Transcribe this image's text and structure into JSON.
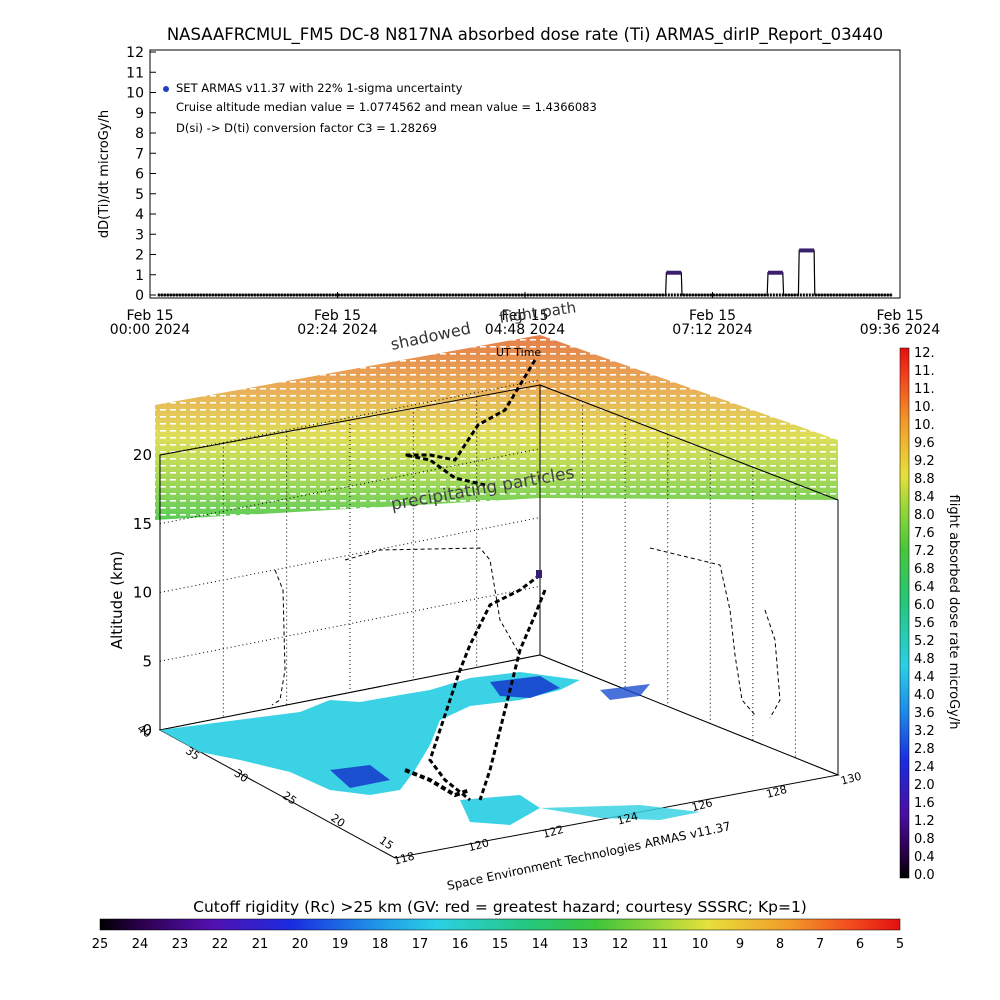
{
  "title": "NASAAFRCMUL_FM5 DC-8   N817NA absorbed dose rate (Ti) ARMAS_dirIP_Report_03440",
  "top_chart": {
    "ylabel": "dD(Ti)/dt microGy/h",
    "legend": [
      "SET ARMAS v11.37 with 22% 1-sigma uncertainty",
      "Cruise altitude median value = 1.0774562 and mean value = 1.4366083",
      "D(si) -> D(ti) conversion factor C3 = 1.28269"
    ],
    "time_ticks": [
      {
        "l1": "Feb 15",
        "l2": "00:00 2024"
      },
      {
        "l1": "Feb 15",
        "l2": "02:24 2024"
      },
      {
        "l1": "Feb 15",
        "l2": "04:48 2024"
      },
      {
        "l1": "Feb 15",
        "l2": "07:12 2024"
      },
      {
        "l1": "Feb 15",
        "l2": "09:36 2024"
      }
    ]
  },
  "bottom_chart": {
    "ylabel": "Altitude (km)",
    "z_ticks": [
      "0",
      "5",
      "10",
      "15",
      "20"
    ],
    "lat_ticks": [
      "40",
      "35",
      "30",
      "25",
      "20",
      "15"
    ],
    "lon_ticks": [
      "118",
      "120",
      "122",
      "124",
      "126",
      "128",
      "130"
    ],
    "annotations": {
      "shadowed": "shadowed",
      "flight_path": "flight path",
      "ut_time": "UT Time",
      "precipitating": "precipitating particles",
      "credit": "Space Environment Technologies ARMAS v11.37"
    }
  },
  "right_colorbar": {
    "label": "flight absorbed dose rate microGy/h",
    "ticks": [
      "12.",
      "11.",
      "11.",
      "10.",
      "10.",
      "9.6",
      "9.2",
      "8.8",
      "8.4",
      "8.0",
      "7.6",
      "7.2",
      "6.8",
      "6.4",
      "6.0",
      "5.6",
      "5.2",
      "4.8",
      "4.4",
      "4.0",
      "3.6",
      "3.2",
      "2.8",
      "2.4",
      "2.0",
      "1.6",
      "1.2",
      "0.8",
      "0.4",
      "0.0"
    ]
  },
  "bottom_colorbar": {
    "title": "Cutoff rigidity (Rc) >25 km (GV: red = greatest hazard; courtesy SSSRC; Kp=1)",
    "ticks": [
      "25",
      "24",
      "23",
      "22",
      "21",
      "20",
      "19",
      "18",
      "17",
      "16",
      "15",
      "14",
      "13",
      "12",
      "11",
      "10",
      "9",
      "8",
      "7",
      "6",
      "5"
    ]
  },
  "chart_data": [
    {
      "type": "line",
      "title": "NASAAFRCMUL_FM5 DC-8   N817NA absorbed dose rate (Ti) ARMAS_dirIP_Report_03440",
      "ylabel": "dD(Ti)/dt microGy/h",
      "xlabel": "",
      "ylim": [
        0,
        12
      ],
      "xlim_hours": [
        0,
        9.6
      ],
      "yticks": [
        0,
        1,
        2,
        3,
        4,
        5,
        6,
        7,
        8,
        9,
        10,
        11,
        12
      ],
      "series": [
        {
          "name": "SET ARMAS v11.37 with 22% 1-sigma uncertainty",
          "color": "#2030c0",
          "x_hours": [
            0.1,
            6.6,
            6.61,
            6.8,
            6.81,
            7.8,
            7.9,
            7.91,
            8.1,
            8.11,
            8.2,
            8.3,
            8.31,
            8.5,
            8.51,
            9.5
          ],
          "y": [
            0,
            0,
            1.1,
            1.1,
            0,
            0,
            0,
            1.1,
            1.1,
            0,
            0,
            0,
            2.2,
            2.2,
            0,
            0
          ]
        }
      ]
    },
    {
      "type": "scatter",
      "title": "",
      "ylabel": "Altitude (km)",
      "zlim_km": [
        0,
        20
      ],
      "lat_range": [
        15,
        40
      ],
      "lon_range": [
        118,
        130
      ],
      "series": [
        {
          "name": "flight path",
          "lon": [
            121.5,
            121.8,
            122.3,
            122.7,
            123.0,
            123.2
          ],
          "lat": [
            24,
            28,
            31,
            33,
            35,
            37
          ],
          "alt_km": [
            0,
            4,
            9,
            11,
            11,
            11
          ]
        }
      ]
    }
  ],
  "colors": {
    "dose_line": "#000000",
    "dose_points": "#3a1f6e",
    "legend_dot": "#1f3fbf",
    "map_fill": "#3ad2e4",
    "map_dark": "#1a4fd0"
  }
}
